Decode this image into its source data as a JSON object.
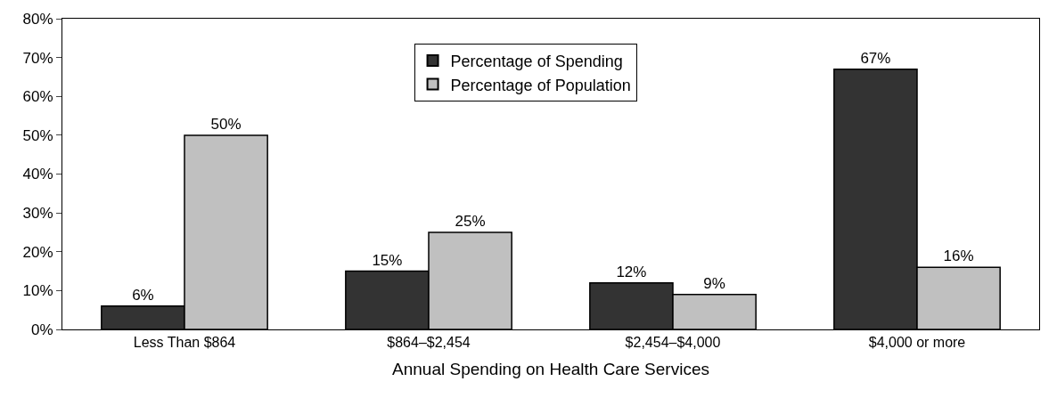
{
  "chart_data": {
    "type": "bar",
    "xlabel": "Annual Spending on Health Care Services",
    "categories": [
      "Less Than $864",
      "$864–$2,454",
      "$2,454–$4,000",
      "$4,000 or more"
    ],
    "series": [
      {
        "name": "Percentage of Spending",
        "color": "#333333",
        "values": [
          6,
          15,
          12,
          67
        ],
        "value_labels": [
          "6%",
          "15%",
          "12%",
          "67%"
        ]
      },
      {
        "name": "Percentage of Population",
        "color": "#c0c0c0",
        "values": [
          50,
          25,
          9,
          16
        ],
        "value_labels": [
          "50%",
          "25%",
          "9%",
          "16%"
        ]
      }
    ],
    "ylim": [
      0,
      80
    ],
    "yticks": [
      {
        "value": 0,
        "label": "0%"
      },
      {
        "value": 10,
        "label": "10%"
      },
      {
        "value": 20,
        "label": "20%"
      },
      {
        "value": 30,
        "label": "30%"
      },
      {
        "value": 40,
        "label": "40%"
      },
      {
        "value": 50,
        "label": "50%"
      },
      {
        "value": 60,
        "label": "60%"
      },
      {
        "value": 70,
        "label": "70%"
      },
      {
        "value": 80,
        "label": "80%"
      }
    ],
    "grid": false,
    "legend": "top"
  }
}
